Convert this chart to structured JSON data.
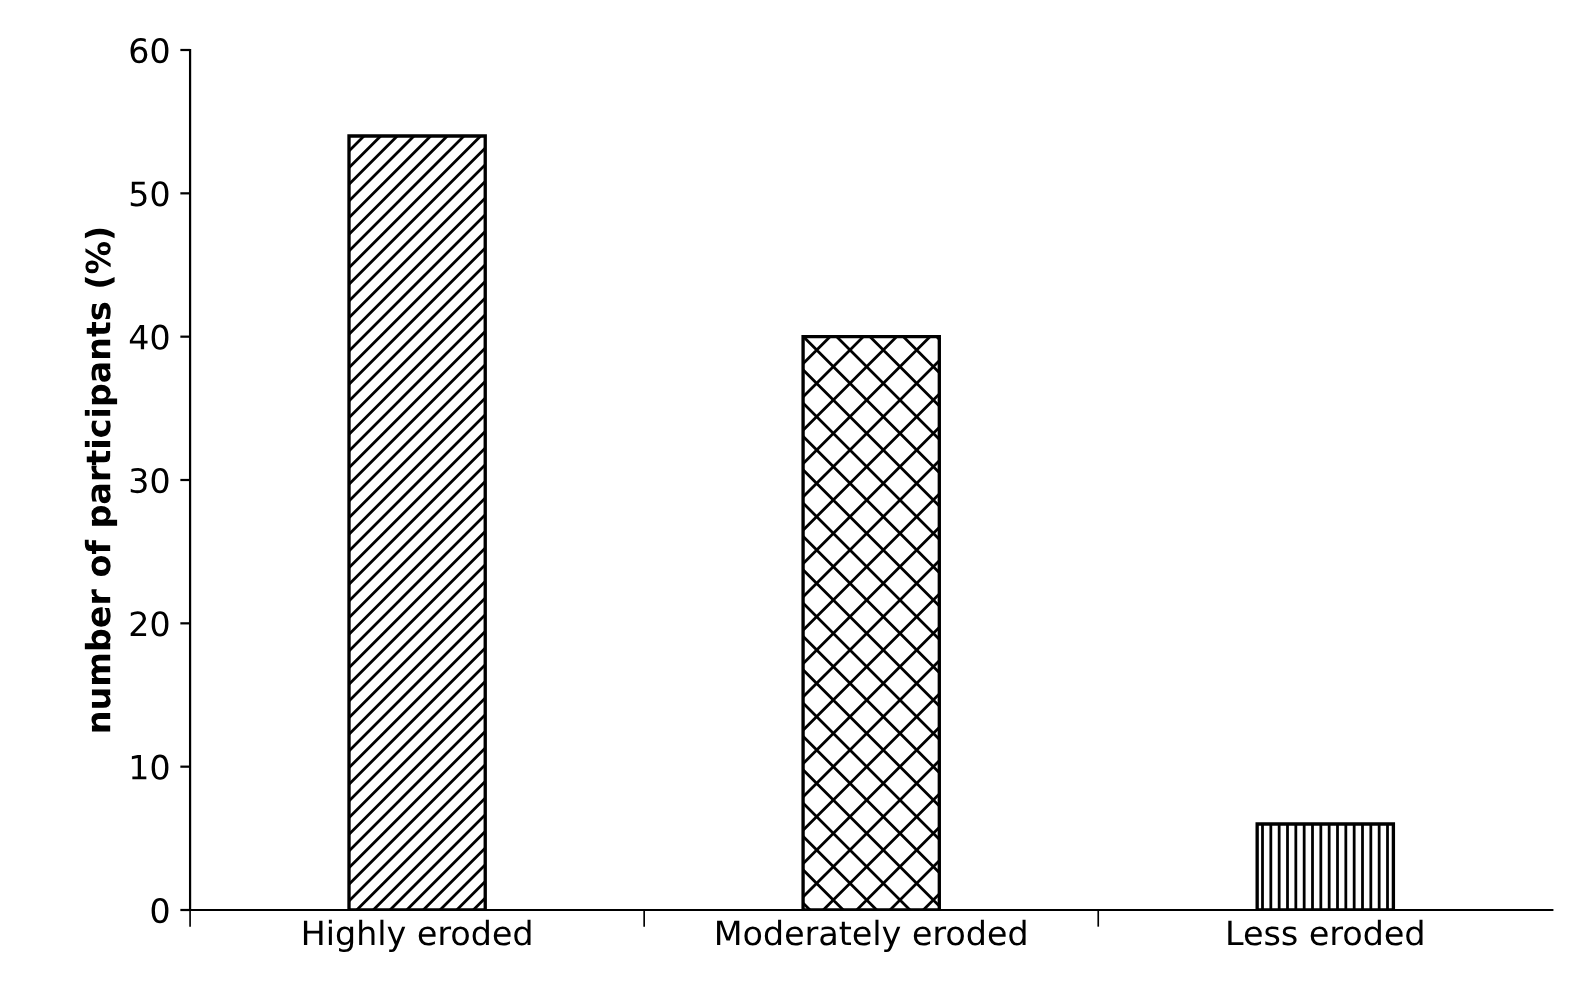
{
  "chart_data": {
    "type": "bar",
    "ylabel": "number of participants (%)",
    "categories": [
      "Highly eroded",
      "Moderately eroded",
      "Less eroded"
    ],
    "values": [
      54,
      40,
      6
    ],
    "color": "#000000",
    "ylim": [
      0,
      60
    ],
    "yticks": [
      0,
      10,
      20,
      30,
      40,
      50,
      60
    ],
    "grid": false
  }
}
